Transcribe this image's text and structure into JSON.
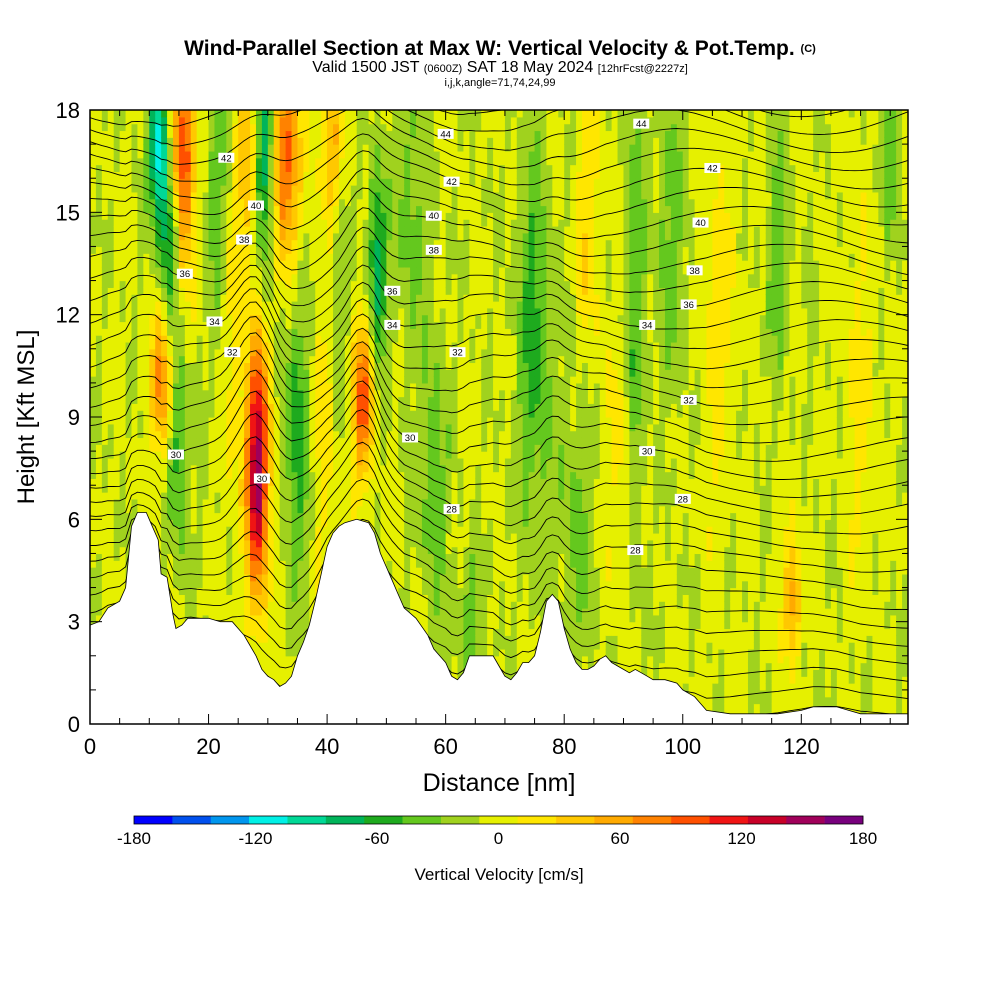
{
  "header": {
    "title_main": "Wind-Parallel Section at Max W: Vertical Velocity & Pot.Temp.",
    "title_tag": "(C)",
    "valid_a": "Valid 1500 JST",
    "valid_zulu": "(0600Z)",
    "valid_b": "SAT 18 May 2024",
    "forecast_tag": "[12hrFcst@2227z]",
    "indices": "i,j,k,angle=71,74,24,99"
  },
  "chart_data": {
    "type": "heatmap",
    "xlabel": "Distance [nm]",
    "ylabel": "Height [Kft MSL]",
    "xlim": [
      0,
      138
    ],
    "ylim": [
      0,
      18
    ],
    "xticks": [
      0,
      20,
      40,
      60,
      80,
      100,
      120
    ],
    "yticks": [
      0,
      3,
      6,
      9,
      12,
      15,
      18
    ],
    "colorbar": {
      "label": "Vertical Velocity [cm/s]",
      "range": [
        -180,
        180
      ],
      "step": 20,
      "tick_labels": [
        "-180",
        "-120",
        "-60",
        "0",
        "60",
        "120",
        "180"
      ],
      "colors": [
        "#0000ff",
        "#0050ee",
        "#0096ee",
        "#00f0e6",
        "#00d896",
        "#00b45a",
        "#1eaa1e",
        "#64c81e",
        "#a0d21e",
        "#e6f000",
        "#ffe600",
        "#ffc800",
        "#ffaa00",
        "#ff8200",
        "#ff5000",
        "#f01414",
        "#c80028",
        "#a0005a",
        "#78007d"
      ]
    },
    "terrain": [
      [
        0,
        2.9
      ],
      [
        1.5,
        3.0
      ],
      [
        3,
        3.4
      ],
      [
        5,
        3.6
      ],
      [
        6,
        4.0
      ],
      [
        7,
        5.8
      ],
      [
        8,
        6.2
      ],
      [
        9.5,
        6.2
      ],
      [
        10.5,
        5.8
      ],
      [
        11.5,
        5.4
      ],
      [
        12,
        4.4
      ],
      [
        13,
        4.3
      ],
      [
        14,
        3.2
      ],
      [
        14.5,
        2.8
      ],
      [
        15.5,
        2.9
      ],
      [
        16.5,
        3.1
      ],
      [
        18,
        3.1
      ],
      [
        20,
        3.1
      ],
      [
        22,
        3.0
      ],
      [
        24,
        3.0
      ],
      [
        25,
        2.8
      ],
      [
        26,
        2.6
      ],
      [
        27,
        2.3
      ],
      [
        28,
        2.0
      ],
      [
        29,
        1.6
      ],
      [
        30,
        1.4
      ],
      [
        31,
        1.3
      ],
      [
        32,
        1.1
      ],
      [
        33,
        1.2
      ],
      [
        34,
        1.4
      ],
      [
        35,
        2.0
      ],
      [
        36,
        2.4
      ],
      [
        37,
        2.9
      ],
      [
        38,
        3.6
      ],
      [
        39,
        4.4
      ],
      [
        40,
        5.2
      ],
      [
        41,
        5.6
      ],
      [
        42,
        5.8
      ],
      [
        43,
        5.9
      ],
      [
        45,
        6.0
      ],
      [
        47,
        5.9
      ],
      [
        48,
        5.6
      ],
      [
        49,
        5.0
      ],
      [
        50,
        4.6
      ],
      [
        51,
        4.2
      ],
      [
        52,
        3.8
      ],
      [
        53,
        3.4
      ],
      [
        55,
        3.1
      ],
      [
        57,
        2.6
      ],
      [
        58,
        2.2
      ],
      [
        60,
        1.8
      ],
      [
        61,
        1.4
      ],
      [
        62,
        1.3
      ],
      [
        63,
        1.5
      ],
      [
        64,
        2.0
      ],
      [
        66,
        2.0
      ],
      [
        68,
        2.0
      ],
      [
        69,
        1.7
      ],
      [
        70,
        1.4
      ],
      [
        71,
        1.3
      ],
      [
        72,
        1.5
      ],
      [
        73,
        1.8
      ],
      [
        74,
        1.8
      ],
      [
        75,
        2.0
      ],
      [
        76,
        2.7
      ],
      [
        77,
        3.6
      ],
      [
        78,
        3.8
      ],
      [
        79,
        3.6
      ],
      [
        80,
        2.8
      ],
      [
        81,
        2.2
      ],
      [
        82,
        1.8
      ],
      [
        83,
        1.6
      ],
      [
        84,
        1.6
      ],
      [
        85,
        1.7
      ],
      [
        86,
        1.9
      ],
      [
        87,
        2.0
      ],
      [
        88,
        1.8
      ],
      [
        89,
        1.7
      ],
      [
        90,
        1.6
      ],
      [
        91,
        1.5
      ],
      [
        92,
        1.6
      ],
      [
        93,
        1.5
      ],
      [
        94,
        1.4
      ],
      [
        95,
        1.3
      ],
      [
        96,
        1.3
      ],
      [
        97,
        1.3
      ],
      [
        99,
        1.2
      ],
      [
        100,
        1.0
      ],
      [
        101,
        0.9
      ],
      [
        102,
        0.8
      ],
      [
        103,
        0.6
      ],
      [
        104,
        0.4
      ],
      [
        108,
        0.3
      ],
      [
        112,
        0.3
      ],
      [
        116,
        0.3
      ],
      [
        120,
        0.4
      ],
      [
        122,
        0.5
      ],
      [
        126,
        0.5
      ],
      [
        128,
        0.4
      ],
      [
        130,
        0.3
      ],
      [
        134,
        0.3
      ],
      [
        138,
        0.3
      ]
    ],
    "updrafts": [
      {
        "x": 28.3,
        "z": 7.5,
        "w": 170,
        "sx": 1.4,
        "sz": 2.6
      },
      {
        "x": 15.5,
        "z": 16.5,
        "w": 130,
        "sx": 1.4,
        "sz": 2.2
      },
      {
        "x": 12.0,
        "z": 10.0,
        "w": 85,
        "sx": 1.2,
        "sz": 1.5
      },
      {
        "x": 33.0,
        "z": 16.5,
        "w": 110,
        "sx": 1.6,
        "sz": 2.2
      },
      {
        "x": 46.0,
        "z": 9.5,
        "w": 105,
        "sx": 1.3,
        "sz": 1.6
      },
      {
        "x": 26.5,
        "z": 16.5,
        "w": 60,
        "sx": 1.2,
        "sz": 2.0
      },
      {
        "x": 41.0,
        "z": 17.0,
        "w": 70,
        "sx": 1.4,
        "sz": 1.8
      },
      {
        "x": 118.5,
        "z": 3.6,
        "w": 75,
        "sx": 1.0,
        "sz": 1.3
      },
      {
        "x": 84.0,
        "z": 14.5,
        "w": 32,
        "sx": 1.5,
        "sz": 3.0
      },
      {
        "x": 106.0,
        "z": 12.0,
        "w": 28,
        "sx": 2.0,
        "sz": 4.0
      },
      {
        "x": 24.0,
        "z": 12.0,
        "w": 30,
        "sx": 1.5,
        "sz": 4.0
      },
      {
        "x": 90.0,
        "z": 8.0,
        "w": 22,
        "sx": 2.0,
        "sz": 3.0
      },
      {
        "x": 130.0,
        "z": 10.0,
        "w": 22,
        "sx": 2.0,
        "sz": 4.0
      },
      {
        "x": 39.0,
        "z": 9.0,
        "w": 30,
        "sx": 1.5,
        "sz": 3.0
      }
    ],
    "downdrafts": [
      {
        "x": 11.5,
        "z": 17.0,
        "w": -120,
        "sx": 1.1,
        "sz": 1.5
      },
      {
        "x": 13.5,
        "z": 14.5,
        "w": -85,
        "sx": 1.3,
        "sz": 1.6
      },
      {
        "x": 29.5,
        "z": 16.5,
        "w": -90,
        "sx": 1.2,
        "sz": 2.3
      },
      {
        "x": 35.0,
        "z": 8.5,
        "w": -60,
        "sx": 1.5,
        "sz": 3.0
      },
      {
        "x": 48.5,
        "z": 13.5,
        "w": -80,
        "sx": 1.1,
        "sz": 2.0
      },
      {
        "x": 15.0,
        "z": 8.0,
        "w": -55,
        "sx": 1.2,
        "sz": 2.0
      },
      {
        "x": 22.0,
        "z": 15.5,
        "w": -40,
        "sx": 1.5,
        "sz": 3.0
      },
      {
        "x": 75.0,
        "z": 11.5,
        "w": -50,
        "sx": 2.0,
        "sz": 4.0
      },
      {
        "x": 92.0,
        "z": 11.0,
        "w": -45,
        "sx": 1.2,
        "sz": 5.0
      },
      {
        "x": 116.0,
        "z": 14.0,
        "w": -35,
        "sx": 1.3,
        "sz": 2.5
      },
      {
        "x": 135.0,
        "z": 17.0,
        "w": -35,
        "sx": 1.2,
        "sz": 2.0
      },
      {
        "x": 58.0,
        "z": 7.5,
        "w": -40,
        "sx": 1.5,
        "sz": 3.0
      },
      {
        "x": 64.0,
        "z": 3.0,
        "w": -35,
        "sx": 1.5,
        "sz": 1.5
      },
      {
        "x": 82.0,
        "z": 6.0,
        "w": -30,
        "sx": 2.0,
        "sz": 3.0
      },
      {
        "x": 98.0,
        "z": 14.0,
        "w": -30,
        "sx": 2.0,
        "sz": 3.0
      },
      {
        "x": 54.0,
        "z": 15.0,
        "w": -35,
        "sx": 1.5,
        "sz": 3.0
      },
      {
        "x": 42.0,
        "z": 14.0,
        "w": -30,
        "sx": 1.2,
        "sz": 3.0
      }
    ],
    "isentrope_base_c": 28,
    "isentrope_step_c": 0.5,
    "isentrope_labels": [
      {
        "text": "44",
        "x": 60,
        "z": 17.3
      },
      {
        "text": "44",
        "x": 93,
        "z": 17.6
      },
      {
        "text": "42",
        "x": 23,
        "z": 16.6
      },
      {
        "text": "42",
        "x": 61,
        "z": 15.9
      },
      {
        "text": "42",
        "x": 105,
        "z": 16.3
      },
      {
        "text": "40",
        "x": 28,
        "z": 15.2
      },
      {
        "text": "40",
        "x": 58,
        "z": 14.9
      },
      {
        "text": "40",
        "x": 103,
        "z": 14.7
      },
      {
        "text": "38",
        "x": 26,
        "z": 14.2
      },
      {
        "text": "38",
        "x": 58,
        "z": 13.9
      },
      {
        "text": "38",
        "x": 102,
        "z": 13.3
      },
      {
        "text": "36",
        "x": 16,
        "z": 13.2
      },
      {
        "text": "36",
        "x": 51,
        "z": 12.7
      },
      {
        "text": "36",
        "x": 101,
        "z": 12.3
      },
      {
        "text": "34",
        "x": 21,
        "z": 11.8
      },
      {
        "text": "34",
        "x": 51,
        "z": 11.7
      },
      {
        "text": "34",
        "x": 94,
        "z": 11.7
      },
      {
        "text": "32",
        "x": 24,
        "z": 10.9
      },
      {
        "text": "32",
        "x": 62,
        "z": 10.9
      },
      {
        "text": "32",
        "x": 101,
        "z": 9.5
      },
      {
        "text": "30",
        "x": 54,
        "z": 8.4
      },
      {
        "text": "30",
        "x": 94,
        "z": 8.0
      },
      {
        "text": "30",
        "x": 14.5,
        "z": 7.9
      },
      {
        "text": "30",
        "x": 29,
        "z": 7.2
      },
      {
        "text": "28",
        "x": 61,
        "z": 6.3
      },
      {
        "text": "28",
        "x": 100,
        "z": 6.6
      },
      {
        "text": "28",
        "x": 92,
        "z": 5.1
      }
    ]
  }
}
